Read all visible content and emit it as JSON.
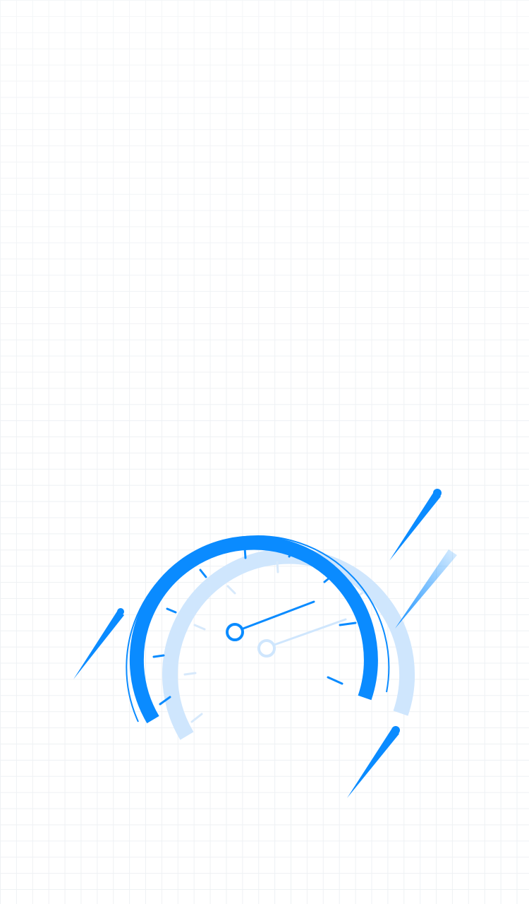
{
  "screen": {
    "background": "#ffffff",
    "grid_color": "#eef1f4"
  },
  "illustration": {
    "icon": "speedometer-icon",
    "accent_color": "#0a8bff",
    "accent_light_color": "#cfe6fd",
    "speed_lines": 4
  }
}
